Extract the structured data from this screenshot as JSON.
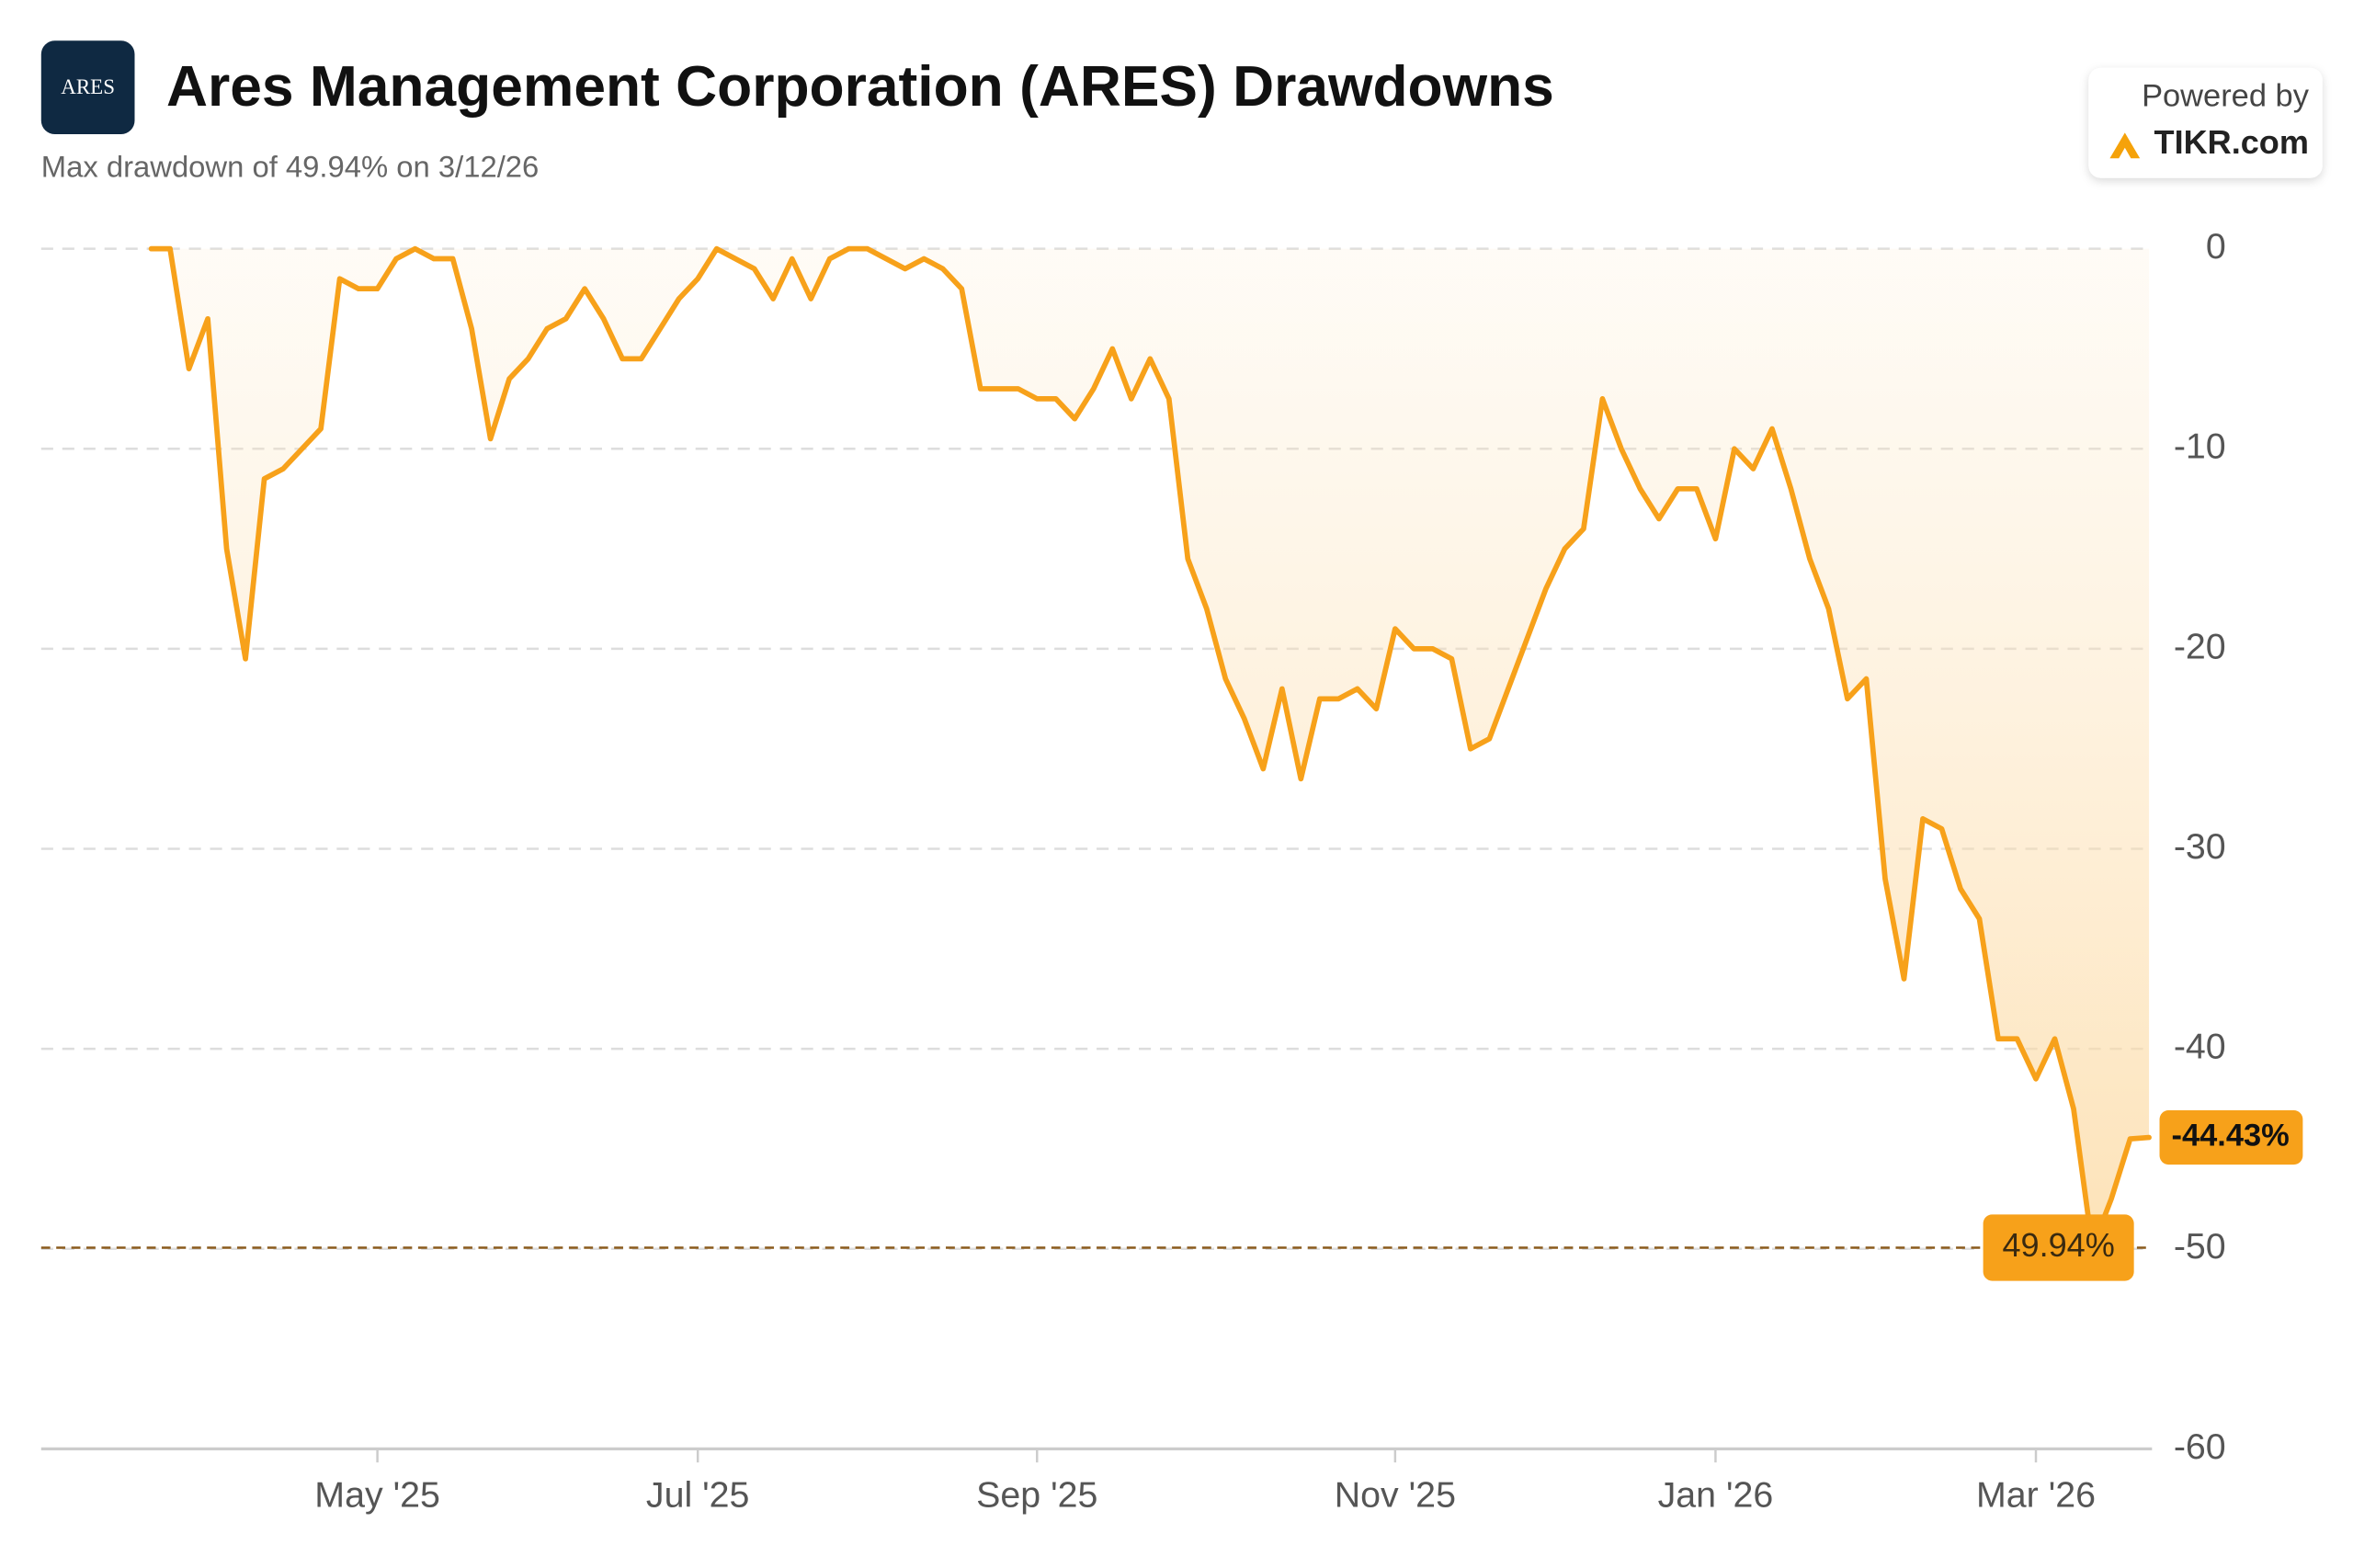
{
  "logo": "ARES",
  "branding": {
    "powered_by": "Powered by",
    "site": "TIKR.com"
  },
  "chart_data": {
    "type": "line",
    "title": "Ares Management Corporation (ARES) Drawdowns",
    "subtitle": "Max drawdown of 49.94% on 3/12/26",
    "color": "#f7a11a",
    "categories": [
      null,
      null,
      null,
      null,
      null,
      null,
      null,
      null,
      null,
      null,
      null,
      null,
      "May '25",
      null,
      null,
      null,
      null,
      null,
      null,
      null,
      null,
      null,
      null,
      null,
      null,
      null,
      null,
      null,
      null,
      "Jul '25",
      null,
      null,
      null,
      null,
      null,
      null,
      null,
      null,
      null,
      null,
      null,
      null,
      null,
      null,
      null,
      null,
      null,
      "Sep '25",
      null,
      null,
      null,
      null,
      null,
      null,
      null,
      null,
      null,
      null,
      null,
      null,
      null,
      null,
      null,
      null,
      null,
      null,
      "Nov '25",
      null,
      null,
      null,
      null,
      null,
      null,
      null,
      null,
      null,
      null,
      null,
      null,
      null,
      null,
      null,
      null,
      "Jan '26",
      null,
      null,
      null,
      null,
      null,
      null,
      null,
      null,
      null,
      null,
      null,
      null,
      null,
      null,
      null,
      null,
      "Mar '26",
      null,
      null,
      null,
      null,
      null,
      null
    ],
    "values": [
      0,
      0,
      -6,
      -3.5,
      -15,
      -20.5,
      -11.5,
      -11,
      -10,
      -9,
      -1.5,
      -2,
      -2,
      -0.5,
      0,
      -0.5,
      -0.5,
      -4,
      -9.5,
      -6.5,
      -5.5,
      -4,
      -3.5,
      -2,
      -3.5,
      -5.5,
      -5.5,
      -4,
      -2.5,
      -1.5,
      0,
      -0.5,
      -1,
      -2.5,
      -0.5,
      -2.5,
      -0.5,
      0,
      0,
      -0.5,
      -1,
      -0.5,
      -1,
      -2,
      -7,
      -7,
      -7,
      -7.5,
      -7.5,
      -8.5,
      -7,
      -5,
      -7.5,
      -5.5,
      -7.5,
      -15.5,
      -18,
      -21.5,
      -23.5,
      -26,
      -22,
      -26.5,
      -22.5,
      -22.5,
      -22,
      -23,
      -19,
      -20,
      -20,
      -20.5,
      -25,
      -24.5,
      -22,
      -19.5,
      -17,
      -15,
      -14,
      -7.5,
      -10,
      -12,
      -13.5,
      -12,
      -12,
      -14.5,
      -10,
      -11,
      -9,
      -12,
      -15.5,
      -18,
      -22.5,
      -21.5,
      -31.5,
      -36.5,
      -28.5,
      -29,
      -32,
      -33.5,
      -39.5,
      -39.5,
      -41.5,
      -39.5,
      -43,
      -49.94,
      -47.5,
      -44.5,
      -44.43
    ],
    "value_labels": [
      null,
      null,
      null,
      null,
      null,
      null,
      null,
      null,
      null,
      null,
      null,
      null,
      null,
      null,
      null,
      null,
      null,
      null,
      null,
      null,
      null,
      null,
      null,
      null,
      null,
      null,
      null,
      null,
      null,
      null,
      null,
      null,
      null,
      null,
      null,
      null,
      null,
      null,
      null,
      null,
      null,
      null,
      null,
      null,
      null,
      null,
      null,
      null,
      null,
      null,
      null,
      null,
      null,
      null,
      null,
      null,
      null,
      null,
      null,
      null,
      null,
      null,
      null,
      null,
      null,
      null,
      null,
      null,
      null,
      null,
      null,
      null,
      null,
      null,
      null,
      null,
      null,
      null,
      null,
      null,
      null,
      null,
      null,
      null,
      null,
      null,
      null,
      null,
      null,
      null,
      null,
      null,
      null,
      null,
      null,
      null,
      null,
      null,
      null,
      null,
      null,
      null,
      null,
      null,
      null,
      null,
      "-44.43%"
    ],
    "reference_line": {
      "value": -49.94,
      "label": "49.94%"
    },
    "ylim": [
      -60,
      0
    ],
    "yticks": [
      0,
      -10,
      -20,
      -30,
      -40,
      -50,
      -60
    ],
    "grid": true
  }
}
